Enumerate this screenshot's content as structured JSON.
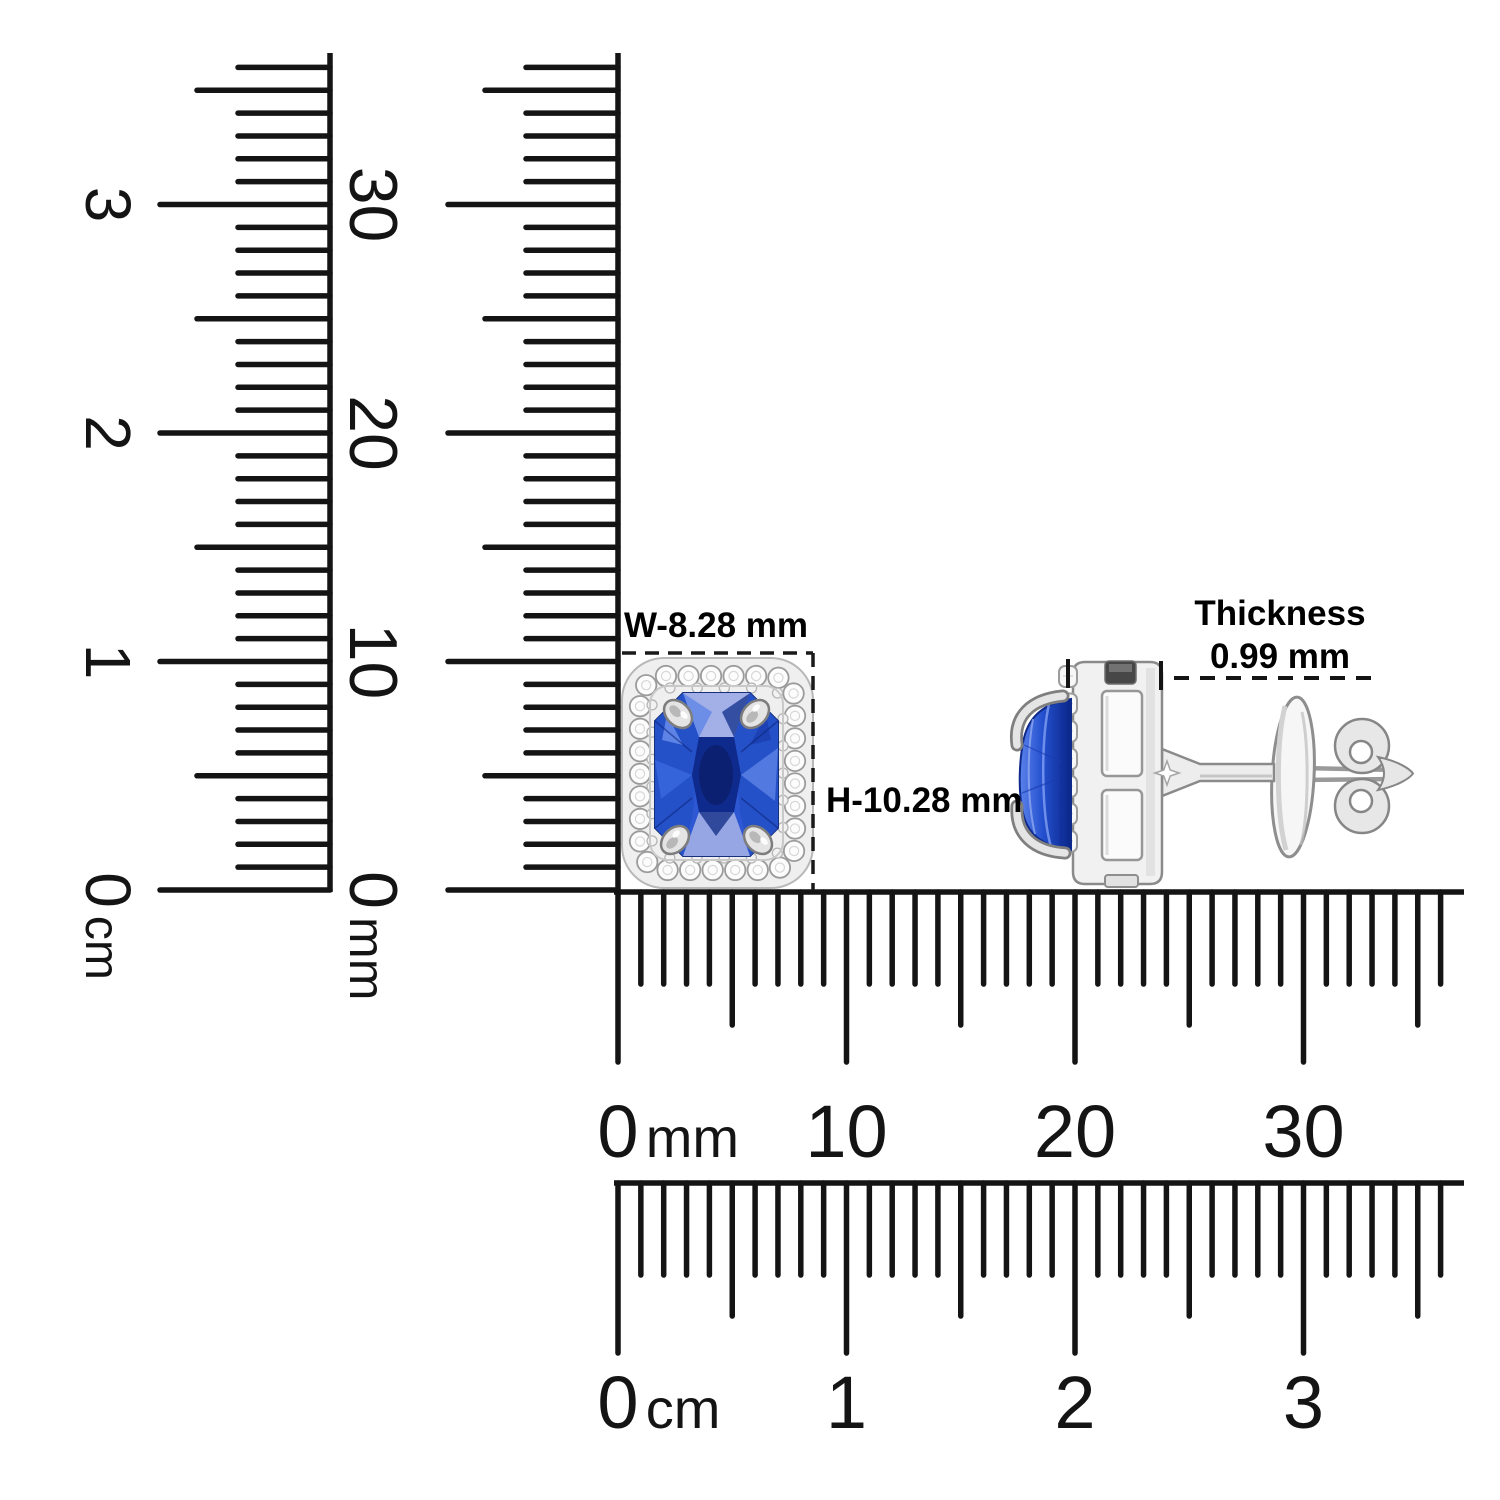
{
  "annotations": {
    "width_label": "W-8.28 mm",
    "height_label": "H-10.28 mm",
    "thickness_title": "Thickness",
    "thickness_value": "0.99 mm"
  },
  "rulers": {
    "vertical_cm": {
      "unit": "cm",
      "labels": [
        "0",
        "1",
        "2",
        "3"
      ]
    },
    "vertical_mm": {
      "unit": "mm",
      "labels": [
        "0",
        "10",
        "20",
        "30"
      ]
    },
    "horizontal_mm": {
      "unit": "mm",
      "labels": [
        "0",
        "10",
        "20",
        "30"
      ]
    },
    "horizontal_cm": {
      "unit": "cm",
      "labels": [
        "0",
        "1",
        "2",
        "3"
      ]
    }
  },
  "colors": {
    "ink": "#141414",
    "metal_light": "#f1f1f1",
    "metal_stroke": "#8a8a8a",
    "halo_stone_stroke": "#9b9b9b",
    "stone_light": "#a3b0e8",
    "stone_mid": "#2e57d3",
    "stone_deep": "#12309f",
    "stone_dark": "#0b2070"
  }
}
